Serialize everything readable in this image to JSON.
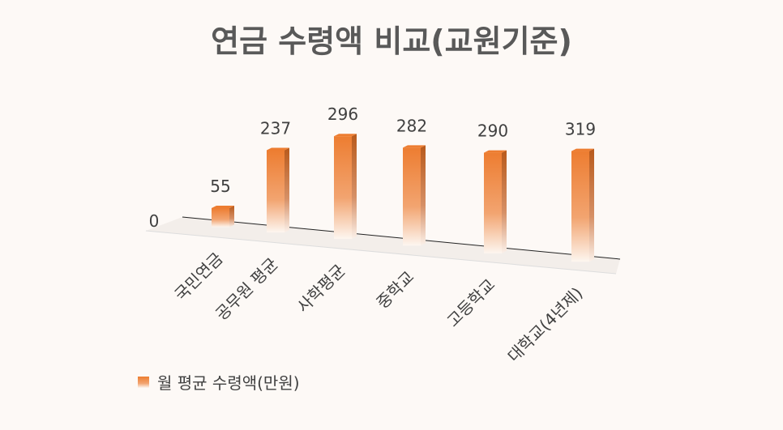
{
  "chart_data": {
    "type": "bar3d",
    "title": "연금 수령액 비교(교원기준)",
    "categories": [
      "국민연금",
      "공무원 평균",
      "사학평균",
      "중학교",
      "고등학교",
      "대학교(4년제)"
    ],
    "series": [
      {
        "name": "월 평균 수령액(만원)",
        "color": "#ed7d31",
        "values": [
          55,
          237,
          296,
          282,
          290,
          319
        ]
      }
    ],
    "ylim": [
      0,
      350
    ],
    "yticks": [
      0
    ],
    "legend": "bottom-left"
  }
}
